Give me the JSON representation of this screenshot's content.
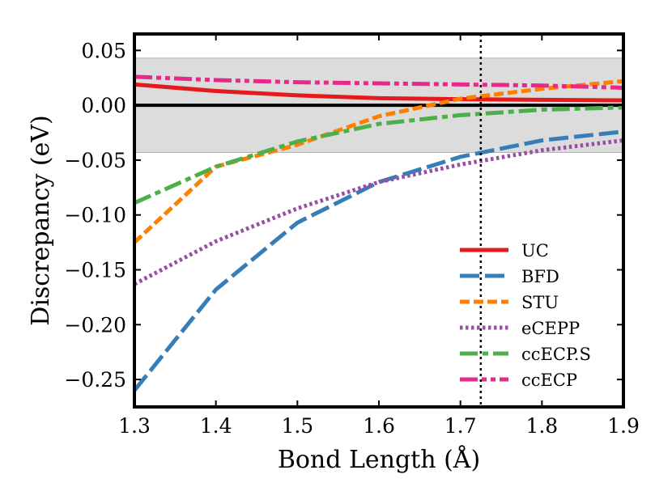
{
  "chart_data": {
    "type": "line",
    "xlabel": "Bond Length (Å)",
    "ylabel": "Discrepancy (eV)",
    "xlim": [
      1.3,
      1.9
    ],
    "ylim": [
      -0.275,
      0.065
    ],
    "x_ticks": [
      1.3,
      1.4,
      1.5,
      1.6,
      1.7,
      1.8,
      1.9
    ],
    "x_tick_labels": [
      "1.3",
      "1.4",
      "1.5",
      "1.6",
      "1.7",
      "1.8",
      "1.9"
    ],
    "y_ticks": [
      -0.25,
      -0.2,
      -0.15,
      -0.1,
      -0.05,
      0.0,
      0.05
    ],
    "y_tick_labels": [
      "−0.25",
      "−0.20",
      "−0.15",
      "−0.10",
      "−0.05",
      "0.00",
      "0.05"
    ],
    "shaded_band": [
      -0.043,
      0.043
    ],
    "zero_line": 0.0,
    "vertical_reference_line": 1.725,
    "legend_position": "lower right",
    "grid": false,
    "series": [
      {
        "name": "UC",
        "color": "#e41a1c",
        "style": "solid",
        "x": [
          1.3,
          1.4,
          1.5,
          1.6,
          1.7,
          1.8,
          1.9
        ],
        "y": [
          0.019,
          0.013,
          0.009,
          0.0065,
          0.0055,
          0.005,
          0.0045
        ]
      },
      {
        "name": "BFD",
        "color": "#377eb8",
        "style": "longdash",
        "x": [
          1.3,
          1.4,
          1.5,
          1.6,
          1.7,
          1.8,
          1.9
        ],
        "y": [
          -0.26,
          -0.168,
          -0.107,
          -0.07,
          -0.047,
          -0.032,
          -0.024
        ]
      },
      {
        "name": "STU",
        "color": "#ff7f00",
        "style": "dash",
        "x": [
          1.3,
          1.4,
          1.5,
          1.6,
          1.7,
          1.8,
          1.9
        ],
        "y": [
          -0.125,
          -0.056,
          -0.036,
          -0.01,
          0.006,
          0.015,
          0.022
        ]
      },
      {
        "name": "eCEPP",
        "color": "#984ea3",
        "style": "dot",
        "x": [
          1.3,
          1.4,
          1.5,
          1.6,
          1.7,
          1.8,
          1.9
        ],
        "y": [
          -0.163,
          -0.124,
          -0.094,
          -0.07,
          -0.054,
          -0.041,
          -0.032
        ]
      },
      {
        "name": "ccECP.S",
        "color": "#4daf4a",
        "style": "dashdot",
        "x": [
          1.3,
          1.4,
          1.5,
          1.6,
          1.7,
          1.8,
          1.9
        ],
        "y": [
          -0.089,
          -0.056,
          -0.033,
          -0.017,
          -0.009,
          -0.004,
          -0.002
        ]
      },
      {
        "name": "ccECP",
        "color": "#e7298a",
        "style": "dashdotdot",
        "x": [
          1.3,
          1.4,
          1.5,
          1.6,
          1.7,
          1.8,
          1.9
        ],
        "y": [
          0.026,
          0.023,
          0.021,
          0.02,
          0.019,
          0.018,
          0.016
        ]
      }
    ]
  }
}
